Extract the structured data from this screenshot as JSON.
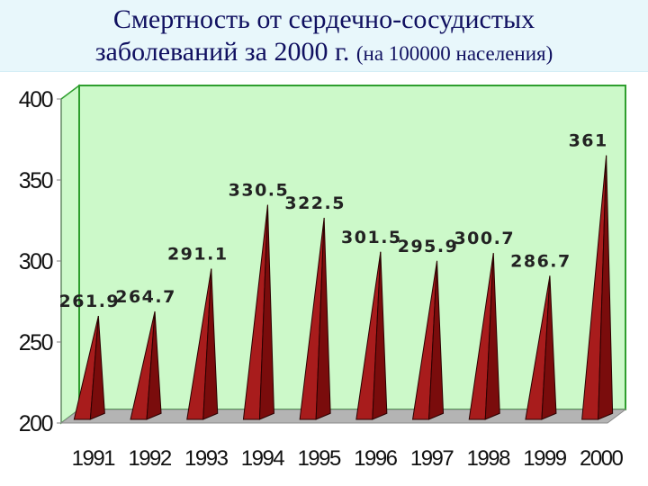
{
  "title": {
    "line1": "Смертность от сердечно-сосудистых",
    "line2_main": "заболеваний за 2000 г.",
    "line2_sub": "(на 100000 населения)"
  },
  "colors": {
    "wall": "#ccf9c9",
    "wall_border": "#2e9e2e",
    "floor": "#b4b4b4",
    "spike_dark": "#7a0c0c",
    "spike_light": "#a81c1c"
  },
  "chart_data": {
    "type": "bar",
    "bar_shape": "3d-cone",
    "categories": [
      "1991",
      "1992",
      "1993",
      "1994",
      "1995",
      "1996",
      "1997",
      "1998",
      "1999",
      "2000"
    ],
    "values": [
      261.9,
      264.7,
      291.1,
      330.5,
      322.5,
      301.5,
      295.9,
      300.7,
      286.7,
      361
    ],
    "data_labels": [
      "261.9",
      "264.7",
      "291.1",
      "330.5",
      "322.5",
      "301.5",
      "295.9",
      "300.7",
      "286.7",
      "361"
    ],
    "ylim": [
      200,
      400
    ],
    "yticks": [
      200,
      250,
      300,
      350,
      400
    ],
    "ytick_labels": [
      "200",
      "250",
      "300",
      "350",
      "400"
    ],
    "grid": false,
    "legend": "none",
    "xlabel": "",
    "ylabel": ""
  }
}
